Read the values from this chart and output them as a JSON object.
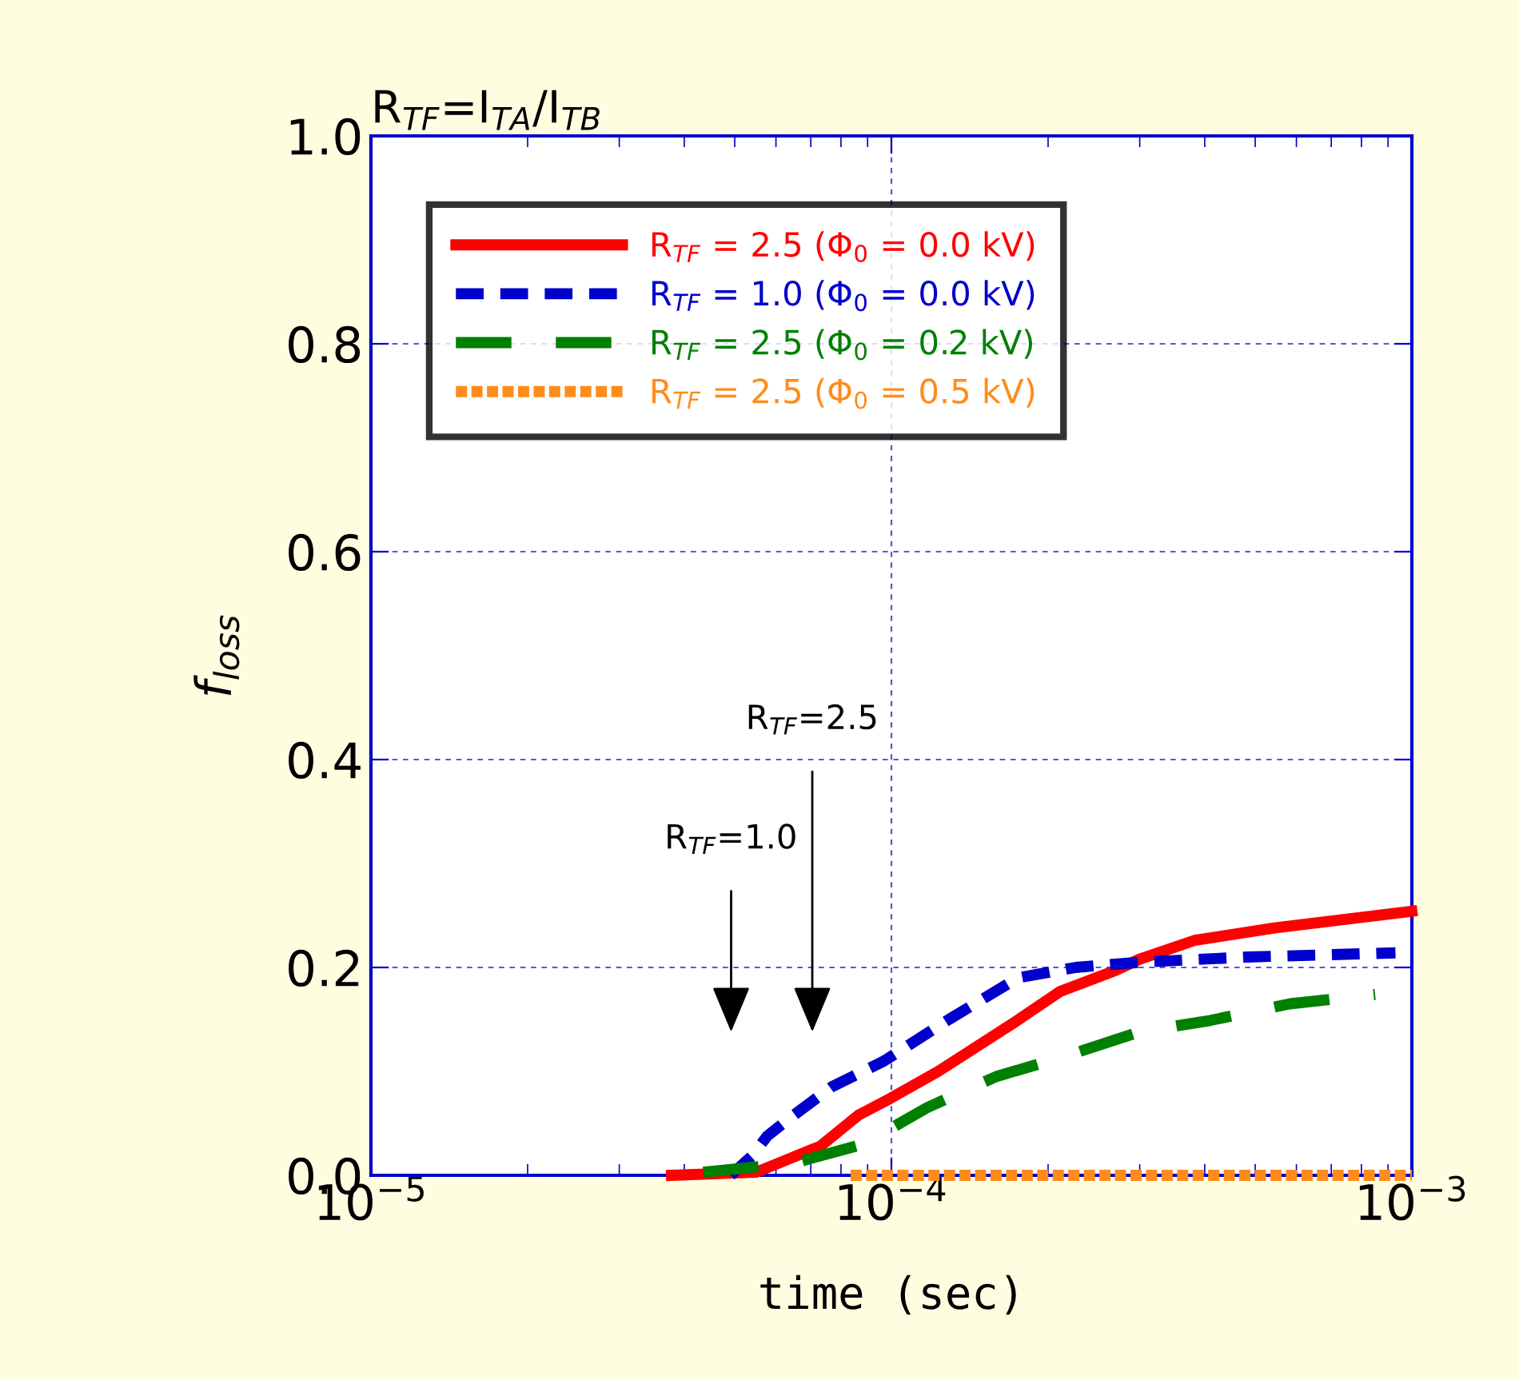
{
  "chart_data": {
    "type": "line",
    "title": "R$_{TF}$=I$_{TA}$/I$_{TB}$",
    "xlabel": "time (sec)",
    "ylabel": "f$_{loss}$",
    "log": "x",
    "xlim": [
      1e-05,
      0.001
    ],
    "xticks": [
      {
        "value": 1e-05,
        "label": "10$^{−5}$"
      },
      {
        "value": 0.0001,
        "label": "10$^{−4}$"
      },
      {
        "value": 0.001,
        "label": "10$^{−3}$"
      }
    ],
    "ylim": [
      0,
      1.0
    ],
    "yticks": [
      {
        "value": 0,
        "label": "0.0"
      },
      {
        "value": 0.2,
        "label": "0.2"
      },
      {
        "value": 0.4,
        "label": "0.4"
      },
      {
        "value": 0.6,
        "label": "0.6"
      },
      {
        "value": 0.8,
        "label": "0.8"
      },
      {
        "value": 1.0,
        "label": "1.0"
      }
    ],
    "grid": true,
    "legend": "top left",
    "series": [
      {
        "name": "R$_{TF}$ = 2.5 (Φ$_{0}$ = 0.0 kV)",
        "color": "#ff0000",
        "line_style": "solid",
        "x": [
          3.78e-05,
          5.5e-05,
          7.3e-05,
          8.65e-05,
          9.95e-05,
          0.000123,
          0.000171,
          0.000211,
          0.000269,
          0.0003,
          0.000382,
          0.000544,
          0.001
        ],
        "values": [
          0,
          0.003,
          0.028,
          0.058,
          0.074,
          0.1,
          0.146,
          0.177,
          0.197,
          0.208,
          0.226,
          0.238,
          0.254
        ]
      },
      {
        "name": "R$_{TF}$ = 1.0 (Φ$_{0}$ = 0.0 kV)",
        "color": "#0000cc",
        "line_style": "dashed",
        "x": [
          4.91e-05,
          5.38e-05,
          5.78e-05,
          6.34e-05,
          7.67e-05,
          9.68e-05,
          0.000129,
          0.000175,
          0.000226,
          0.0003,
          0.000482,
          0.00093
        ],
        "values": [
          0,
          0.018,
          0.038,
          0.054,
          0.085,
          0.11,
          0.15,
          0.19,
          0.2,
          0.205,
          0.21,
          0.214
        ]
      },
      {
        "name": "R$_{TF}$ = 2.5 (Φ$_{0}$ = 0.2 kV)",
        "color": "#008000",
        "line_style": "longdash",
        "x": [
          4.35e-05,
          6.52e-05,
          8.83e-05,
          0.000117,
          0.000159,
          0.000217,
          0.0003,
          0.00041,
          0.000583,
          0.00085
        ],
        "values": [
          0.003,
          0.012,
          0.03,
          0.065,
          0.095,
          0.115,
          0.138,
          0.149,
          0.165,
          0.174
        ]
      },
      {
        "name": "R$_{TF}$ = 2.5 (Φ$_{0}$ = 0.5 kV)",
        "color": "#ff8c1a",
        "line_style": "dotted",
        "x": [
          8.35e-05,
          0.001
        ],
        "values": [
          0,
          0
        ]
      }
    ],
    "annotations": [
      "R$_{TF}$=1.0",
      "R$_{TF}$=2.5"
    ]
  }
}
